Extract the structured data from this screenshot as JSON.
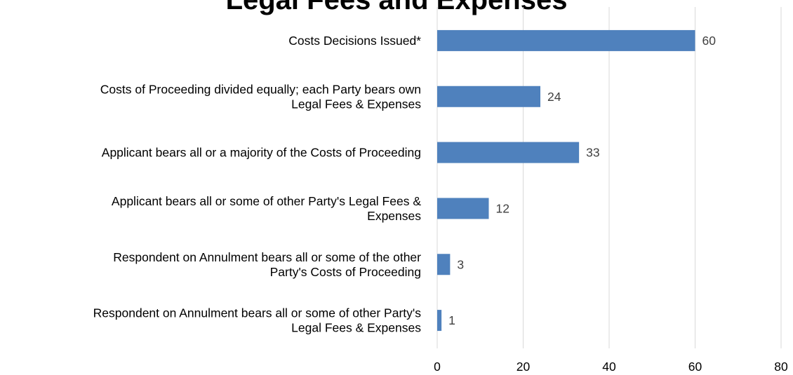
{
  "chart_data": {
    "type": "bar",
    "orientation": "horizontal",
    "title": "Legal Fees and Expenses",
    "categories": [
      [
        "Costs Decisions Issued*"
      ],
      [
        "Costs of Proceeding divided equally; each Party bears own",
        "Legal Fees & Expenses"
      ],
      [
        "Applicant bears all or a majority of the Costs of Proceeding"
      ],
      [
        "Applicant bears all or some of other Party's Legal Fees &",
        "Expenses"
      ],
      [
        "Respondent on Annulment bears all or some of the other",
        "Party's Costs of Proceeding"
      ],
      [
        "Respondent on Annulment bears all or some of other Party's",
        "Legal Fees & Expenses"
      ]
    ],
    "values": [
      60,
      24,
      33,
      12,
      3,
      1
    ],
    "data_labels": [
      "60",
      "24",
      "33",
      "12",
      "3",
      "1"
    ],
    "xlim": [
      0,
      80
    ],
    "xticks": [
      "0",
      "20",
      "40",
      "60",
      "80"
    ],
    "xlabel": "",
    "ylabel": "",
    "grid": "vertical",
    "legend": "none",
    "bar_color": "#4f81bd",
    "grid_color": "#d9d9d9",
    "label_color": "#404040"
  }
}
